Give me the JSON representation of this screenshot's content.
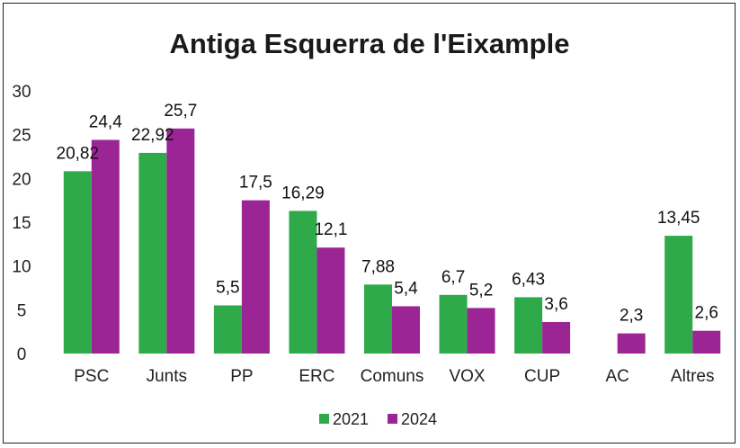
{
  "chart_data": {
    "type": "bar",
    "title": "Antiga Esquerra de l'Eixample",
    "categories": [
      "PSC",
      "Junts",
      "PP",
      "ERC",
      "Comuns",
      "VOX",
      "CUP",
      "AC",
      "Altres"
    ],
    "series": [
      {
        "name": "2021",
        "color": "#2eaa4a",
        "values": [
          20.82,
          22.92,
          5.5,
          16.29,
          7.88,
          6.7,
          6.43,
          null,
          13.45
        ],
        "labels": [
          "20,82",
          "22,92",
          "5,5",
          "16,29",
          "7,88",
          "6,7",
          "6,43",
          "",
          "13,45"
        ]
      },
      {
        "name": "2024",
        "color": "#9b2595",
        "values": [
          24.4,
          25.7,
          17.5,
          12.1,
          5.4,
          5.2,
          3.6,
          2.3,
          2.6
        ],
        "labels": [
          "24,4",
          "25,7",
          "17,5",
          "12,1",
          "5,4",
          "5,2",
          "3,6",
          "2,3",
          "2,6"
        ]
      }
    ],
    "ylim": [
      0,
      30
    ],
    "yticks": [
      "0",
      "5",
      "10",
      "15",
      "20",
      "25",
      "30"
    ],
    "ytick_values": [
      0,
      5,
      10,
      15,
      20,
      25,
      30
    ],
    "grid": false,
    "legend": "bottom-center"
  }
}
